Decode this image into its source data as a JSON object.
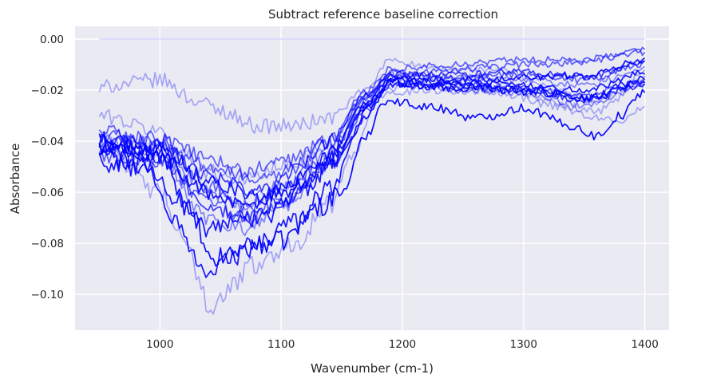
{
  "chart_data": {
    "type": "line",
    "title": "Subtract reference baseline correction",
    "xlabel": "Wavenumber (cm-1)",
    "ylabel": "Absorbance",
    "xlim": [
      930,
      1420
    ],
    "ylim": [
      -0.114,
      0.005
    ],
    "xticks": [
      1000,
      1100,
      1200,
      1300,
      1400
    ],
    "yticks": [
      0.0,
      -0.02,
      -0.04,
      -0.06,
      -0.08,
      -0.1
    ],
    "xtick_labels": [
      "1000",
      "1100",
      "1200",
      "1300",
      "1400"
    ],
    "ytick_labels": [
      "0.00",
      "−0.02",
      "−0.04",
      "−0.06",
      "−0.08",
      "−0.10"
    ],
    "grid": true,
    "background_color": "#eaeaf2",
    "series_color": "#0000ff",
    "x_start": 950,
    "x_end": 1400,
    "x_step": 2,
    "series": [
      {
        "alpha": 0.15,
        "anchors": [
          [
            950,
            0.0
          ],
          [
            1400,
            0.0
          ]
        ],
        "noise": 0.0
      },
      {
        "alpha": 0.95,
        "anchors": [
          [
            950,
            -0.041
          ],
          [
            1000,
            -0.045
          ],
          [
            1030,
            -0.072
          ],
          [
            1040,
            -0.087
          ],
          [
            1070,
            -0.082
          ],
          [
            1100,
            -0.079
          ],
          [
            1130,
            -0.066
          ],
          [
            1150,
            -0.06
          ],
          [
            1170,
            -0.038
          ],
          [
            1185,
            -0.024
          ],
          [
            1200,
            -0.025
          ],
          [
            1230,
            -0.027
          ],
          [
            1260,
            -0.031
          ],
          [
            1300,
            -0.027
          ],
          [
            1340,
            -0.034
          ],
          [
            1360,
            -0.038
          ],
          [
            1380,
            -0.03
          ],
          [
            1400,
            -0.02
          ]
        ],
        "noise": 0.004
      },
      {
        "alpha": 0.3,
        "anchors": [
          [
            950,
            -0.02
          ],
          [
            960,
            -0.018
          ],
          [
            1000,
            -0.016
          ],
          [
            1030,
            -0.024
          ],
          [
            1050,
            -0.028
          ],
          [
            1080,
            -0.034
          ],
          [
            1110,
            -0.034
          ],
          [
            1140,
            -0.031
          ],
          [
            1170,
            -0.02
          ],
          [
            1190,
            -0.008
          ],
          [
            1230,
            -0.012
          ],
          [
            1280,
            -0.012
          ],
          [
            1330,
            -0.02
          ],
          [
            1360,
            -0.025
          ],
          [
            1380,
            -0.02
          ],
          [
            1400,
            -0.012
          ]
        ],
        "noise": 0.003
      },
      {
        "alpha": 0.3,
        "anchors": [
          [
            950,
            -0.03
          ],
          [
            1000,
            -0.036
          ],
          [
            1020,
            -0.045
          ],
          [
            1040,
            -0.052
          ],
          [
            1070,
            -0.055
          ],
          [
            1100,
            -0.05
          ],
          [
            1140,
            -0.042
          ],
          [
            1180,
            -0.02
          ],
          [
            1220,
            -0.016
          ],
          [
            1270,
            -0.016
          ],
          [
            1320,
            -0.024
          ],
          [
            1350,
            -0.03
          ],
          [
            1380,
            -0.032
          ],
          [
            1400,
            -0.027
          ]
        ],
        "noise": 0.003
      },
      {
        "alpha": 0.3,
        "anchors": [
          [
            950,
            -0.04
          ],
          [
            1000,
            -0.06
          ],
          [
            1020,
            -0.08
          ],
          [
            1035,
            -0.095
          ],
          [
            1040,
            -0.108
          ],
          [
            1050,
            -0.1
          ],
          [
            1080,
            -0.088
          ],
          [
            1110,
            -0.08
          ],
          [
            1140,
            -0.065
          ],
          [
            1160,
            -0.045
          ],
          [
            1180,
            -0.022
          ],
          [
            1220,
            -0.02
          ],
          [
            1270,
            -0.02
          ],
          [
            1330,
            -0.026
          ],
          [
            1360,
            -0.028
          ],
          [
            1400,
            -0.016
          ]
        ],
        "noise": 0.004
      },
      {
        "alpha": 0.9,
        "anchors": [
          [
            950,
            -0.045
          ],
          [
            990,
            -0.05
          ],
          [
            1010,
            -0.07
          ],
          [
            1030,
            -0.085
          ],
          [
            1040,
            -0.092
          ],
          [
            1060,
            -0.085
          ],
          [
            1080,
            -0.08
          ],
          [
            1110,
            -0.072
          ],
          [
            1140,
            -0.058
          ],
          [
            1170,
            -0.03
          ],
          [
            1190,
            -0.017
          ],
          [
            1230,
            -0.018
          ],
          [
            1270,
            -0.019
          ],
          [
            1320,
            -0.021
          ],
          [
            1360,
            -0.023
          ],
          [
            1400,
            -0.015
          ]
        ],
        "noise": 0.004
      },
      {
        "alpha": 0.6,
        "anchors": [
          [
            950,
            -0.036
          ],
          [
            1000,
            -0.04
          ],
          [
            1030,
            -0.045
          ],
          [
            1070,
            -0.052
          ],
          [
            1100,
            -0.048
          ],
          [
            1140,
            -0.04
          ],
          [
            1170,
            -0.022
          ],
          [
            1190,
            -0.014
          ],
          [
            1240,
            -0.012
          ],
          [
            1300,
            -0.01
          ],
          [
            1350,
            -0.009
          ],
          [
            1400,
            -0.005
          ]
        ],
        "noise": 0.003
      },
      {
        "alpha": 0.9,
        "anchors": [
          [
            950,
            -0.042
          ],
          [
            1000,
            -0.043
          ],
          [
            1040,
            -0.055
          ],
          [
            1080,
            -0.062
          ],
          [
            1110,
            -0.058
          ],
          [
            1140,
            -0.048
          ],
          [
            1170,
            -0.027
          ],
          [
            1190,
            -0.016
          ],
          [
            1240,
            -0.016
          ],
          [
            1300,
            -0.015
          ],
          [
            1350,
            -0.014
          ],
          [
            1400,
            -0.008
          ]
        ],
        "noise": 0.003
      },
      {
        "alpha": 0.6,
        "anchors": [
          [
            950,
            -0.038
          ],
          [
            1000,
            -0.039
          ],
          [
            1040,
            -0.058
          ],
          [
            1070,
            -0.066
          ],
          [
            1100,
            -0.06
          ],
          [
            1140,
            -0.046
          ],
          [
            1170,
            -0.024
          ],
          [
            1190,
            -0.013
          ],
          [
            1240,
            -0.015
          ],
          [
            1300,
            -0.014
          ],
          [
            1350,
            -0.016
          ],
          [
            1400,
            -0.01
          ]
        ],
        "noise": 0.003
      },
      {
        "alpha": 0.9,
        "anchors": [
          [
            950,
            -0.042
          ],
          [
            1000,
            -0.046
          ],
          [
            1040,
            -0.06
          ],
          [
            1070,
            -0.066
          ],
          [
            1100,
            -0.06
          ],
          [
            1140,
            -0.045
          ],
          [
            1170,
            -0.025
          ],
          [
            1190,
            -0.016
          ],
          [
            1240,
            -0.017
          ],
          [
            1300,
            -0.018
          ],
          [
            1350,
            -0.02
          ],
          [
            1400,
            -0.013
          ]
        ],
        "noise": 0.003
      },
      {
        "alpha": 0.6,
        "anchors": [
          [
            950,
            -0.046
          ],
          [
            1000,
            -0.048
          ],
          [
            1040,
            -0.064
          ],
          [
            1070,
            -0.07
          ],
          [
            1100,
            -0.064
          ],
          [
            1140,
            -0.05
          ],
          [
            1170,
            -0.028
          ],
          [
            1190,
            -0.018
          ],
          [
            1240,
            -0.018
          ],
          [
            1300,
            -0.019
          ],
          [
            1350,
            -0.022
          ],
          [
            1400,
            -0.017
          ]
        ],
        "noise": 0.003
      },
      {
        "alpha": 0.75,
        "anchors": [
          [
            950,
            -0.04
          ],
          [
            1000,
            -0.042
          ],
          [
            1040,
            -0.054
          ],
          [
            1080,
            -0.06
          ],
          [
            1110,
            -0.052
          ],
          [
            1140,
            -0.04
          ],
          [
            1170,
            -0.022
          ],
          [
            1190,
            -0.014
          ],
          [
            1240,
            -0.014
          ],
          [
            1300,
            -0.013
          ],
          [
            1350,
            -0.015
          ],
          [
            1400,
            -0.009
          ]
        ],
        "noise": 0.003
      },
      {
        "alpha": 0.45,
        "anchors": [
          [
            950,
            -0.043
          ],
          [
            1000,
            -0.047
          ],
          [
            1040,
            -0.07
          ],
          [
            1070,
            -0.074
          ],
          [
            1100,
            -0.066
          ],
          [
            1140,
            -0.05
          ],
          [
            1170,
            -0.026
          ],
          [
            1190,
            -0.015
          ],
          [
            1240,
            -0.02
          ],
          [
            1300,
            -0.021
          ],
          [
            1350,
            -0.026
          ],
          [
            1400,
            -0.019
          ]
        ],
        "noise": 0.003
      },
      {
        "alpha": 0.9,
        "anchors": [
          [
            950,
            -0.048
          ],
          [
            990,
            -0.052
          ],
          [
            1020,
            -0.064
          ],
          [
            1040,
            -0.075
          ],
          [
            1060,
            -0.073
          ],
          [
            1090,
            -0.068
          ],
          [
            1120,
            -0.058
          ],
          [
            1150,
            -0.045
          ],
          [
            1175,
            -0.024
          ],
          [
            1190,
            -0.017
          ],
          [
            1240,
            -0.019
          ],
          [
            1300,
            -0.02
          ],
          [
            1350,
            -0.023
          ],
          [
            1400,
            -0.016
          ]
        ],
        "noise": 0.004
      },
      {
        "alpha": 0.6,
        "anchors": [
          [
            950,
            -0.04
          ],
          [
            1000,
            -0.041
          ],
          [
            1040,
            -0.05
          ],
          [
            1080,
            -0.055
          ],
          [
            1110,
            -0.05
          ],
          [
            1140,
            -0.04
          ],
          [
            1170,
            -0.02
          ],
          [
            1190,
            -0.012
          ],
          [
            1240,
            -0.01
          ],
          [
            1300,
            -0.008
          ],
          [
            1350,
            -0.008
          ],
          [
            1400,
            -0.004
          ]
        ],
        "noise": 0.003
      },
      {
        "alpha": 0.75,
        "anchors": [
          [
            950,
            -0.043
          ],
          [
            1000,
            -0.046
          ],
          [
            1040,
            -0.066
          ],
          [
            1070,
            -0.07
          ],
          [
            1100,
            -0.064
          ],
          [
            1140,
            -0.05
          ],
          [
            1170,
            -0.026
          ],
          [
            1190,
            -0.018
          ],
          [
            1240,
            -0.019
          ],
          [
            1300,
            -0.02
          ],
          [
            1350,
            -0.024
          ],
          [
            1400,
            -0.018
          ]
        ],
        "noise": 0.003
      },
      {
        "alpha": 0.45,
        "anchors": [
          [
            950,
            -0.04
          ],
          [
            1000,
            -0.042
          ],
          [
            1040,
            -0.06
          ],
          [
            1070,
            -0.064
          ],
          [
            1100,
            -0.058
          ],
          [
            1140,
            -0.044
          ],
          [
            1170,
            -0.023
          ],
          [
            1190,
            -0.014
          ],
          [
            1240,
            -0.015
          ],
          [
            1300,
            -0.016
          ],
          [
            1350,
            -0.018
          ],
          [
            1400,
            -0.012
          ]
        ],
        "noise": 0.003
      }
    ]
  }
}
